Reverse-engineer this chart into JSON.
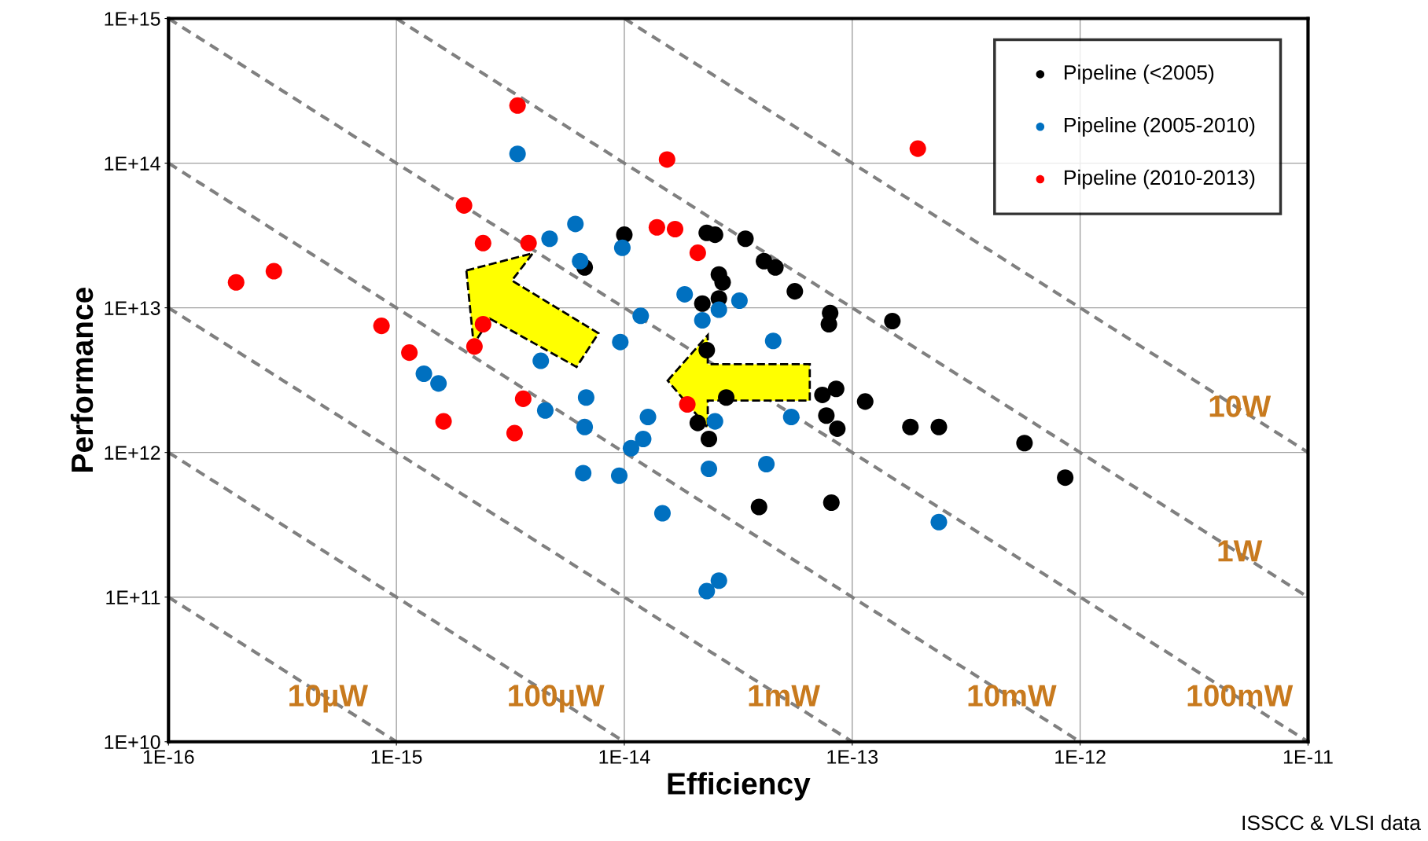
{
  "chart_data": {
    "type": "scatter",
    "xlabel": "Efficiency",
    "ylabel": "Performance",
    "log": "xy",
    "grid": true,
    "legend": "top right",
    "marker": "circle",
    "xlim": [
      1e-16,
      1e-11
    ],
    "ylim": [
      10000000000.0,
      1000000000000000.0
    ],
    "xticks": [
      {
        "value": 1e-16,
        "label": "1E-16"
      },
      {
        "value": 1e-15,
        "label": "1E-15"
      },
      {
        "value": 1e-14,
        "label": "1E-14"
      },
      {
        "value": 1e-13,
        "label": "1E-13"
      },
      {
        "value": 1e-12,
        "label": "1E-12"
      },
      {
        "value": 1e-11,
        "label": "1E-11"
      }
    ],
    "yticks": [
      {
        "value": 10000000000.0,
        "label": "1E+10"
      },
      {
        "value": 100000000000.0,
        "label": "1E+11"
      },
      {
        "value": 1000000000000.0,
        "label": "1E+12"
      },
      {
        "value": 10000000000000.0,
        "label": "1E+13"
      },
      {
        "value": 100000000000000.0,
        "label": "1E+14"
      },
      {
        "value": 1000000000000000.0,
        "label": "1E+15"
      }
    ],
    "series": [
      {
        "type": "line",
        "marker": "none",
        "color": "#808080",
        "line_style": "dashed",
        "x": [
          1e-14,
          1e-11
        ],
        "values": [
          1000000000000000.0,
          1000000000000.0
        ]
      },
      {
        "type": "line",
        "marker": "none",
        "color": "#808080",
        "line_style": "dashed",
        "x": [
          1e-15,
          1e-11
        ],
        "values": [
          1000000000000000.0,
          100000000000.0
        ]
      },
      {
        "type": "line",
        "marker": "none",
        "color": "#808080",
        "line_style": "dashed",
        "x": [
          1e-16,
          1e-11
        ],
        "values": [
          1000000000000000.0,
          10000000000.0
        ]
      },
      {
        "type": "line",
        "marker": "none",
        "color": "#808080",
        "line_style": "dashed",
        "x": [
          1e-16,
          1e-12
        ],
        "values": [
          100000000000000.0,
          10000000000.0
        ]
      },
      {
        "type": "line",
        "marker": "none",
        "color": "#808080",
        "line_style": "dashed",
        "x": [
          1e-16,
          1e-13
        ],
        "values": [
          10000000000000.0,
          10000000000.0
        ]
      },
      {
        "type": "line",
        "marker": "none",
        "color": "#808080",
        "line_style": "dashed",
        "x": [
          1e-16,
          1e-14
        ],
        "values": [
          1000000000000.0,
          10000000000.0
        ]
      },
      {
        "type": "line",
        "marker": "none",
        "color": "#808080",
        "line_style": "dashed",
        "x": [
          1e-16,
          1e-15
        ],
        "values": [
          100000000000.0,
          10000000000.0
        ]
      },
      {
        "name": "Pipeline (<2005)",
        "color": "#000000",
        "x": [
          1e-14,
          6.7e-15,
          2.3e-14,
          2.5e-14,
          3.4e-14,
          4.1e-14,
          4.6e-14,
          5.6e-14,
          2.6e-14,
          2.7e-14,
          2.6e-14,
          2.2e-14,
          8e-14,
          7.9e-14,
          1.5e-13,
          2.3e-14,
          7.4e-14,
          8.5e-14,
          1.14e-13,
          7.7e-14,
          8.6e-14,
          1.8e-13,
          2.4e-13,
          5.7e-13,
          8.6e-13,
          2.1e-14,
          2.35e-14,
          3.9e-14,
          8.1e-14,
          2.8e-14
        ],
        "values": [
          32000000000000.0,
          19000000000000.0,
          33000000000000.0,
          32000000000000.0,
          30000000000000.0,
          21000000000000.0,
          19000000000000.0,
          13000000000000.0,
          17000000000000.0,
          15000000000000.0,
          11600000000000.0,
          10700000000000.0,
          9200000000000.0,
          7700000000000.0,
          8100000000000.0,
          5100000000000.0,
          2500000000000.0,
          2750000000000.0,
          2250000000000.0,
          1800000000000.0,
          1460000000000.0,
          1500000000000.0,
          1500000000000.0,
          1160000000000.0,
          670000000000.0,
          1600000000000.0,
          1240000000000.0,
          420000000000.0,
          450000000000.0,
          2400000000000.0
        ]
      },
      {
        "name": "Pipeline (2005-2010)",
        "color": "#0070c0",
        "x": [
          3.4e-15,
          6.1e-15,
          4.7e-15,
          6.4e-15,
          9.8e-15,
          1.84e-14,
          1.18e-14,
          2.2e-14,
          2.6e-14,
          3.2e-14,
          9.6e-15,
          4.5e-14,
          4.3e-15,
          1.32e-15,
          1.53e-15,
          4.5e-15,
          6.8e-15,
          6.7e-15,
          1.27e-14,
          2.5e-14,
          5.4e-14,
          1.21e-14,
          1.07e-14,
          6.6e-15,
          9.5e-15,
          2.35e-14,
          4.2e-14,
          1.47e-14,
          2.4e-13,
          2.6e-14,
          2.3e-14
        ],
        "values": [
          116000000000000.0,
          38000000000000.0,
          30000000000000.0,
          21000000000000.0,
          26000000000000.0,
          12400000000000.0,
          8800000000000.0,
          8200000000000.0,
          9700000000000.0,
          11200000000000.0,
          5800000000000.0,
          5900000000000.0,
          4300000000000.0,
          3500000000000.0,
          3000000000000.0,
          1950000000000.0,
          2400000000000.0,
          1500000000000.0,
          1760000000000.0,
          1640000000000.0,
          1760000000000.0,
          1240000000000.0,
          1070000000000.0,
          720000000000.0,
          690000000000.0,
          770000000000.0,
          830000000000.0,
          380000000000.0,
          330000000000.0,
          130000000000.0,
          110000000000.0
        ]
      },
      {
        "name": "Pipeline (2010-2013)",
        "color": "#ff0000",
        "x": [
          3.4e-15,
          1.54e-14,
          1.94e-13,
          1.98e-15,
          1.39e-14,
          1.67e-14,
          2.1e-14,
          2.4e-15,
          3.8e-15,
          1.98e-16,
          2.9e-16,
          8.6e-16,
          1.14e-15,
          2.2e-15,
          3.6e-15,
          1.61e-15,
          3.3e-15,
          1.89e-14,
          2.4e-15
        ],
        "values": [
          250000000000000.0,
          106000000000000.0,
          126000000000000.0,
          51000000000000.0,
          36000000000000.0,
          35000000000000.0,
          24000000000000.0,
          28000000000000.0,
          28000000000000.0,
          15000000000000.0,
          17900000000000.0,
          7500000000000.0,
          4900000000000.0,
          5400000000000.0,
          2350000000000.0,
          1640000000000.0,
          1360000000000.0,
          2150000000000.0,
          7700000000000.0
        ]
      }
    ],
    "annotations": [
      {
        "text": "10W",
        "x": 5e-12,
        "y": 2000000000000.0
      },
      {
        "text": "1W",
        "x": 5e-12,
        "y": 200000000000.0
      },
      {
        "text": "10µW",
        "x": 5e-16,
        "y": 20000000000.0
      },
      {
        "text": "100µW",
        "x": 5e-15,
        "y": 20000000000.0
      },
      {
        "text": "1mW",
        "x": 5e-14,
        "y": 20000000000.0
      },
      {
        "text": "10mW",
        "x": 5e-13,
        "y": 20000000000.0
      },
      {
        "text": "100mW",
        "x": 5e-12,
        "y": 20000000000.0
      },
      "ISSCC & VLSI data"
    ]
  }
}
